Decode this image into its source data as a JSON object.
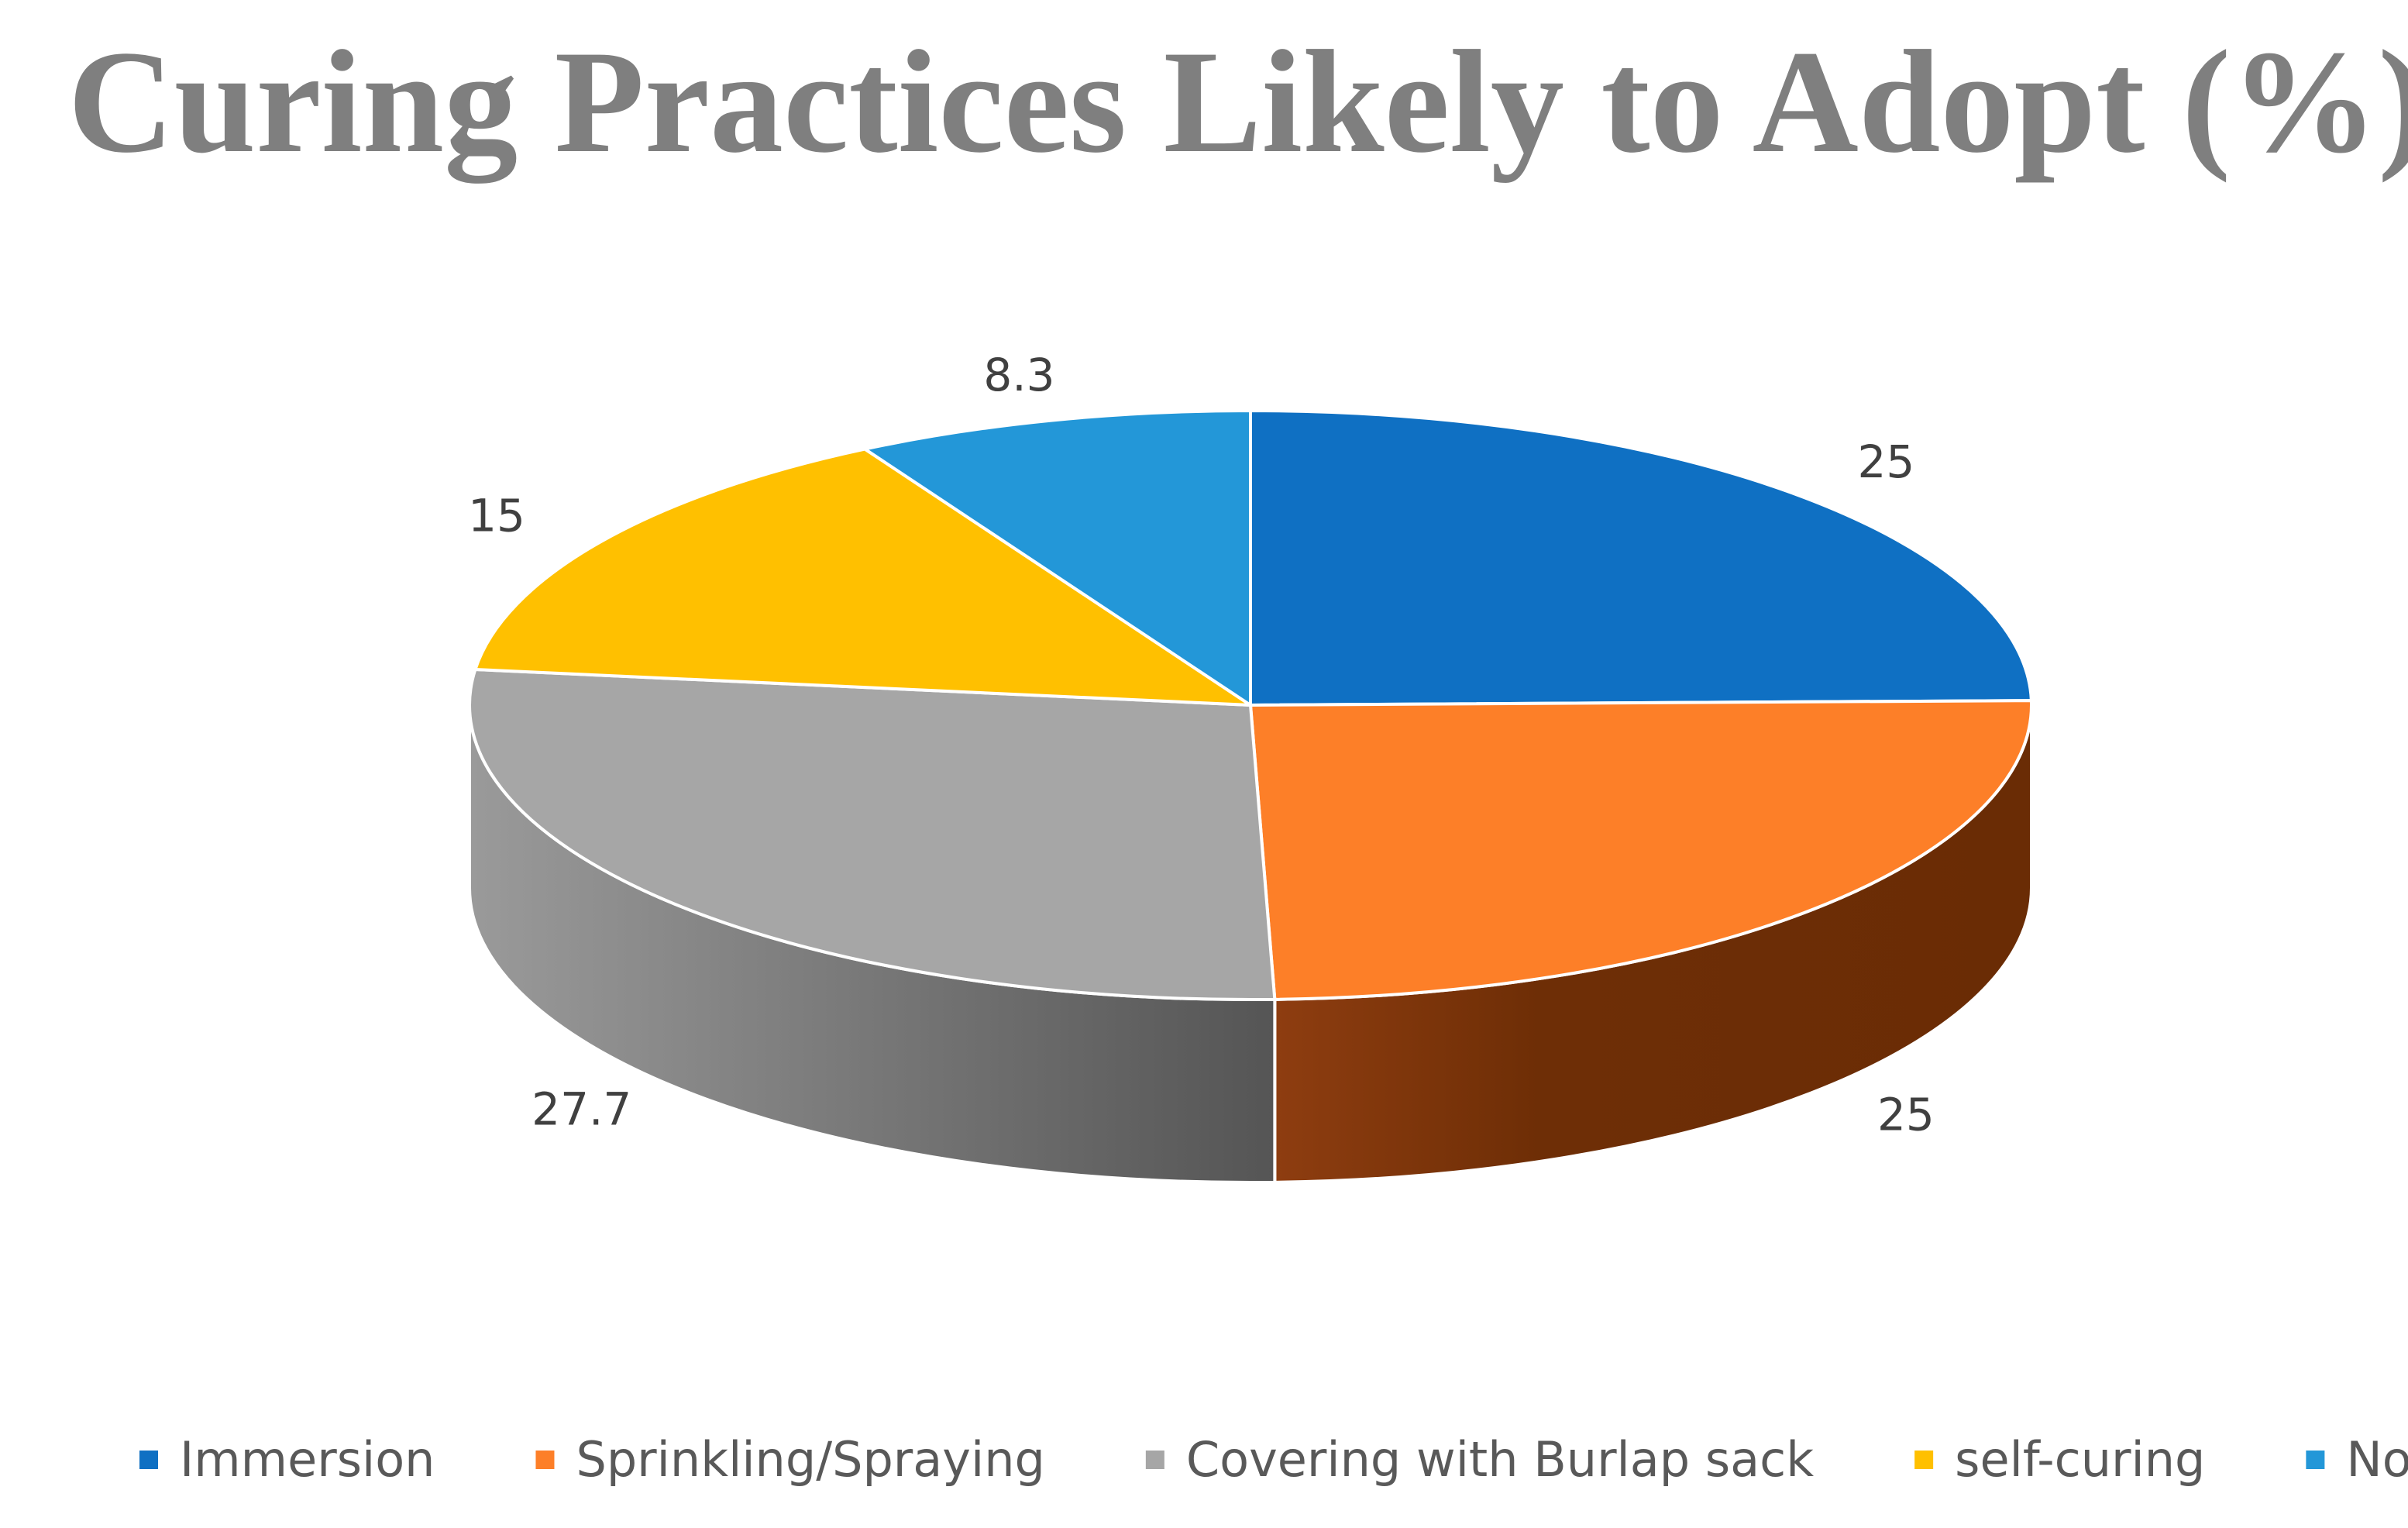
{
  "chart_data": {
    "type": "pie",
    "title": "Curing Practices Likely to Adopt (%)",
    "categories": [
      "Immersion",
      "Sprinkling/Spraying",
      "Covering with Burlap sack",
      "self-curing",
      "Non"
    ],
    "values": [
      25,
      25,
      27.7,
      15,
      8.3
    ],
    "data_labels": [
      "25",
      "25",
      "27.7",
      "15",
      "8.3"
    ],
    "colors": [
      "#0f70c3",
      "#fd7f28",
      "#a6a6a6",
      "#ffc000",
      "#2397d8"
    ],
    "side_colors": [
      "#0a4f8a",
      "#7a3608",
      "#6e6e6e",
      "#b38600",
      "#176a99"
    ],
    "legend_position": "bottom",
    "three_d": true
  }
}
